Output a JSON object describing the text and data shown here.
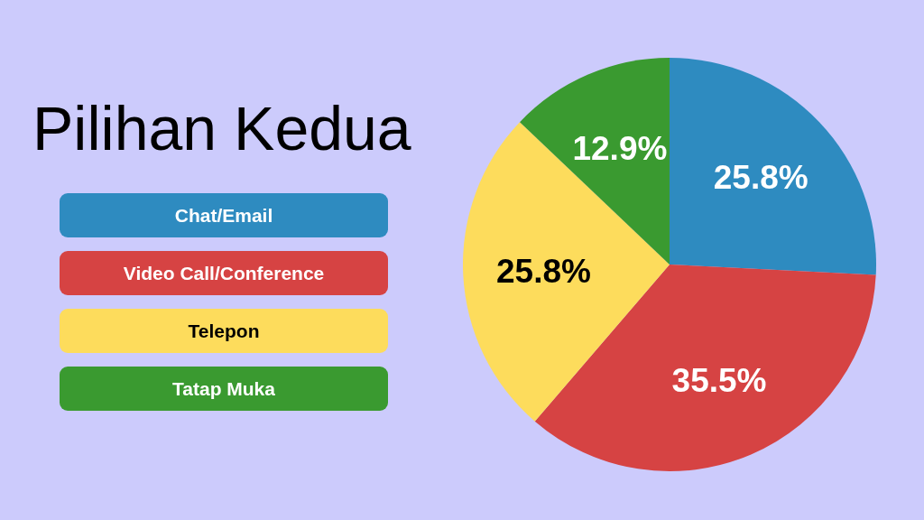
{
  "chart_data": {
    "type": "pie",
    "title": "Pilihan Kedua",
    "categories": [
      "Chat/Email",
      "Video Call/Conference",
      "Telepon",
      "Tatap Muka"
    ],
    "values": [
      25.8,
      35.5,
      25.8,
      12.9
    ],
    "colors": [
      "#2e8bc0",
      "#d64343",
      "#fddc5c",
      "#3a9a30"
    ],
    "value_labels": [
      "25.8%",
      "35.5%",
      "25.8%",
      "12.9%"
    ],
    "legend": "left"
  }
}
